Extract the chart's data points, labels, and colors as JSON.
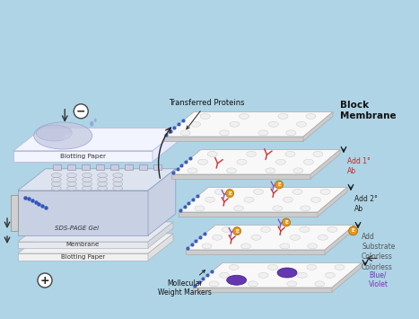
{
  "bg_color": "#aed4e6",
  "labels": {
    "blotting_paper_top": "Blotting Paper",
    "sds_page": "SDS-PAGE Gel",
    "membrane": "Membrane",
    "blotting_paper_bot": "Blotting Paper",
    "transferred_proteins": "Transferred Proteins",
    "block_membrane": "Block\nMembrane",
    "add_1ab": "Add 1°\nAb",
    "add_2ab": "Add 2°\nAb",
    "add_substrate": "Add\nSubstrate\nColorless",
    "blue_violet": "Blue/\nViolet",
    "mol_weight": "Mollecular\nWeight Markers"
  },
  "colors": {
    "bg": "#aed4e6",
    "panel_face": "#f8f8f8",
    "panel_top": "#ffffff",
    "panel_right": "#dddddd",
    "panel_edge": "#aaaaaa",
    "blue_dots": "#3355bb",
    "arrow": "#222222",
    "red_ab": "#cc3333",
    "blue_ab": "#8855cc",
    "orange": "#e8961a",
    "purple": "#6633bb",
    "gel_face": "#dde4f0",
    "gel_top": "#eef0f8",
    "membrane_face": "#e8e8ee",
    "paper_face": "#f5f5f5",
    "blob_fill": "#c0c8e0",
    "blob_edge": "#9999cc"
  }
}
